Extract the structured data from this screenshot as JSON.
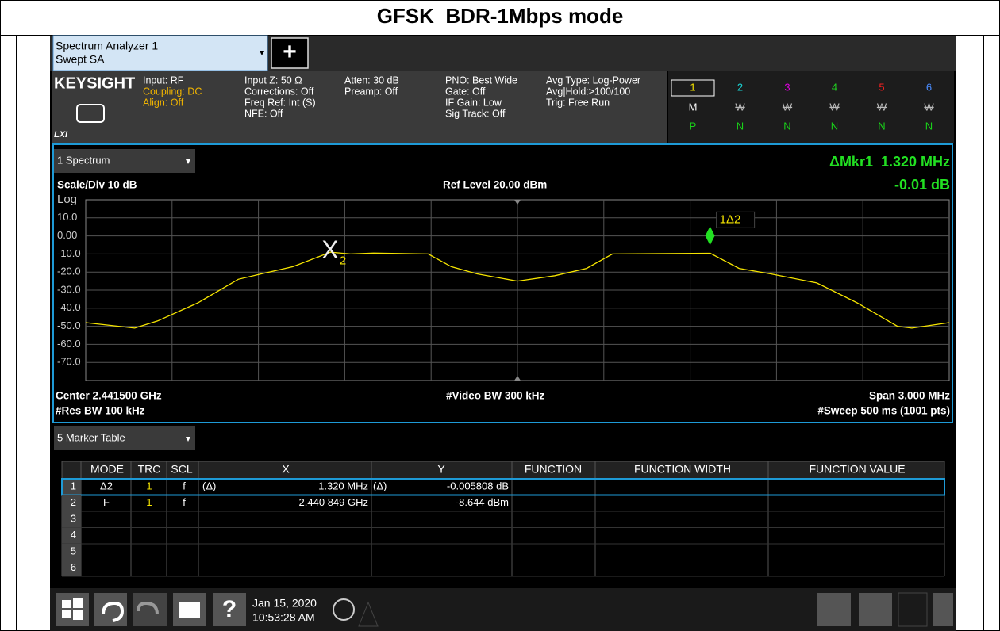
{
  "header": {
    "title": "GFSK_BDR-1Mbps mode"
  },
  "tab": {
    "name": "Spectrum Analyzer 1",
    "mode": "Swept SA",
    "add": "+"
  },
  "info": {
    "brand": "KEYSIGHT",
    "lxi": "LXI",
    "col1": [
      "Input: RF",
      "Coupling: DC",
      "Align: Off"
    ],
    "col2": [
      "Input Z: 50 Ω",
      "Corrections: Off",
      "Freq Ref: Int (S)",
      "NFE: Off"
    ],
    "col3": [
      "Atten: 30 dB",
      "Preamp: Off"
    ],
    "col4": [
      "PNO: Best Wide",
      "Gate: Off",
      "IF Gain: Low",
      "Sig Track: Off"
    ],
    "col5": [
      "Avg Type: Log-Power",
      "Avg|Hold:>100/100",
      "Trig: Free Run"
    ]
  },
  "traces": {
    "numbers": [
      "1",
      "2",
      "3",
      "4",
      "5",
      "6"
    ],
    "types": [
      "M",
      "W",
      "W",
      "W",
      "W",
      "W"
    ],
    "detectors": [
      "P",
      "N",
      "N",
      "N",
      "N",
      "N"
    ],
    "colors": [
      "#f5e400",
      "#19d3d3",
      "#e000e0",
      "#20d020",
      "#f02020",
      "#4a8cff"
    ]
  },
  "spectrum": {
    "window": "1 Spectrum",
    "delta_marker": "ΔMkr1  1.320 MHz",
    "delta_value": "-0.01 dB",
    "scale": "Scale/Div 10 dB",
    "scale_type": "Log",
    "ref_level": "Ref Level 20.00 dBm",
    "center": "Center 2.441500 GHz",
    "res_bw": "#Res BW 100 kHz",
    "video_bw": "#Video BW 300 kHz",
    "span": "Span 3.000 MHz",
    "sweep": "#Sweep 500 ms (1001 pts)",
    "xlim": [
      -1.5,
      1.5
    ],
    "ylim": [
      -80,
      20
    ],
    "xticks": [
      -1.2,
      -0.9,
      -0.6,
      -0.3,
      0,
      0.3,
      0.6,
      0.9,
      1.2
    ],
    "yticks": [
      {
        "value": 10,
        "label": "10.0"
      },
      {
        "value": 0,
        "label": "0.00"
      },
      {
        "value": -10,
        "label": "-10.0"
      },
      {
        "value": -20,
        "label": "-20.0"
      },
      {
        "value": -30,
        "label": "-30.0"
      },
      {
        "value": -40,
        "label": "-40.0"
      },
      {
        "value": -50,
        "label": "-50.0"
      },
      {
        "value": -60,
        "label": "-60.0"
      },
      {
        "value": -70,
        "label": "-70.0"
      }
    ],
    "trace": {
      "color": "#f5e400",
      "x": [
        -1.5,
        -1.33,
        -1.25,
        -1.11,
        -0.97,
        -0.89,
        -0.78,
        -0.65,
        -0.58,
        -0.5,
        -0.31,
        -0.23,
        -0.14,
        0.0,
        0.13,
        0.24,
        0.33,
        0.67,
        0.77,
        0.88,
        1.04,
        1.18,
        1.32,
        1.37,
        1.5
      ],
      "y": [
        -48,
        -51,
        -47,
        -37,
        -24,
        -21,
        -17,
        -9,
        -10,
        -9.5,
        -10,
        -17,
        -21,
        -25,
        -22,
        -18,
        -10,
        -9.6,
        -18,
        -21,
        -26,
        -37,
        -50,
        -51,
        -48
      ]
    },
    "markers": [
      {
        "label": "1Δ2",
        "x": 0.669,
        "y": -8.65
      },
      {
        "symbol": "X",
        "label": "2",
        "x": -0.651,
        "y": -8.644
      }
    ]
  },
  "marker_table": {
    "window": "5 Marker Table",
    "columns": [
      "MODE",
      "TRC",
      "SCL",
      "X",
      "Y",
      "FUNCTION",
      "FUNCTION WIDTH",
      "FUNCTION VALUE"
    ],
    "rows": [
      {
        "n": "1",
        "mode": "Δ2",
        "trc": "1",
        "scl": "f",
        "x_ref": "(Δ)",
        "x": "1.320 MHz",
        "y_ref": "(Δ)",
        "y": "-0.005808 dB"
      },
      {
        "n": "2",
        "mode": "F",
        "trc": "1",
        "scl": "f",
        "x": "2.440 849 GHz",
        "y": "-8.644 dBm"
      },
      {
        "n": "3"
      },
      {
        "n": "4"
      },
      {
        "n": "5"
      },
      {
        "n": "6"
      }
    ]
  },
  "taskbar": {
    "date": "Jan 15, 2020",
    "time": "10:53:28 AM",
    "help": "?"
  }
}
